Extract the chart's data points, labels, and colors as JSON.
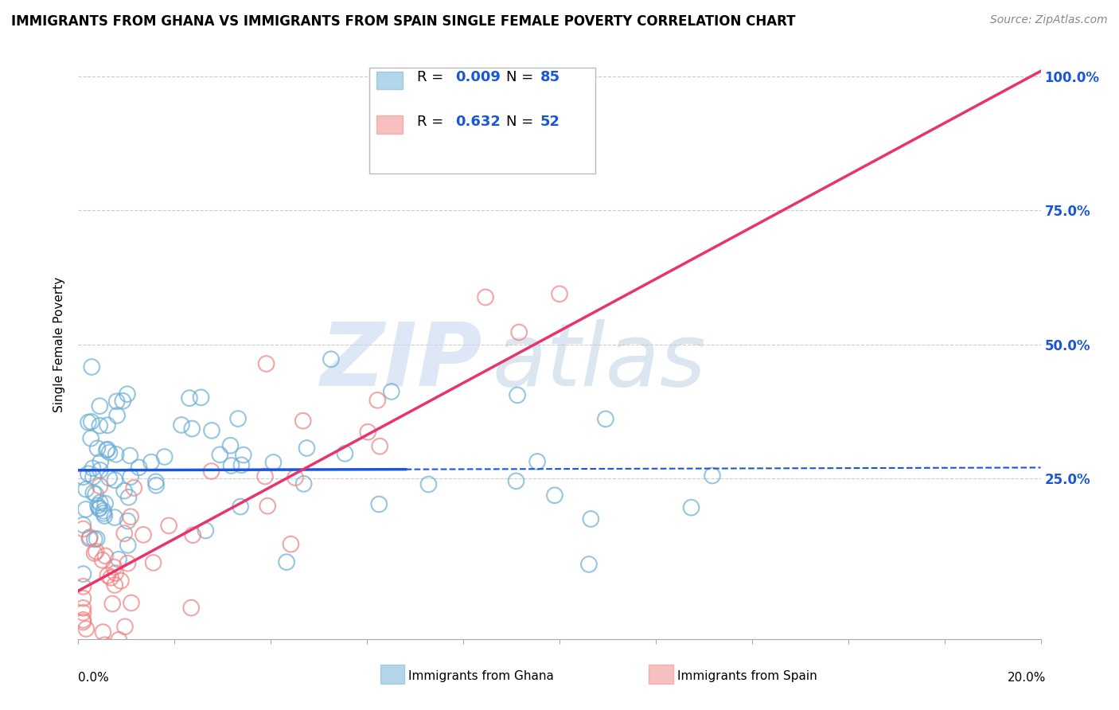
{
  "title": "IMMIGRANTS FROM GHANA VS IMMIGRANTS FROM SPAIN SINGLE FEMALE POVERTY CORRELATION CHART",
  "source": "Source: ZipAtlas.com",
  "ylabel": "Single Female Poverty",
  "legend_ghana": "Immigrants from Ghana",
  "legend_spain": "Immigrants from Spain",
  "R_ghana": "0.009",
  "N_ghana": "85",
  "R_spain": "0.632",
  "N_spain": "52",
  "color_ghana": "#6baed6",
  "color_spain": "#f08080",
  "color_ghana_line": "#1a56db",
  "color_spain_line": "#e8336e",
  "color_blue_text": "#1a56db",
  "background_color": "#ffffff",
  "xlim": [
    0.0,
    0.2
  ],
  "ylim": [
    -0.05,
    1.05
  ],
  "y_tick_values": [
    0.25,
    0.5,
    0.75,
    1.0
  ],
  "y_tick_labels": [
    "25.0%",
    "50.0%",
    "75.0%",
    "100.0%"
  ],
  "ghana_trend_y0": 0.265,
  "ghana_trend_y1": 0.27,
  "ghana_trend_solid_end": 0.068,
  "spain_trend_y0": 0.04,
  "spain_trend_y1": 1.01
}
